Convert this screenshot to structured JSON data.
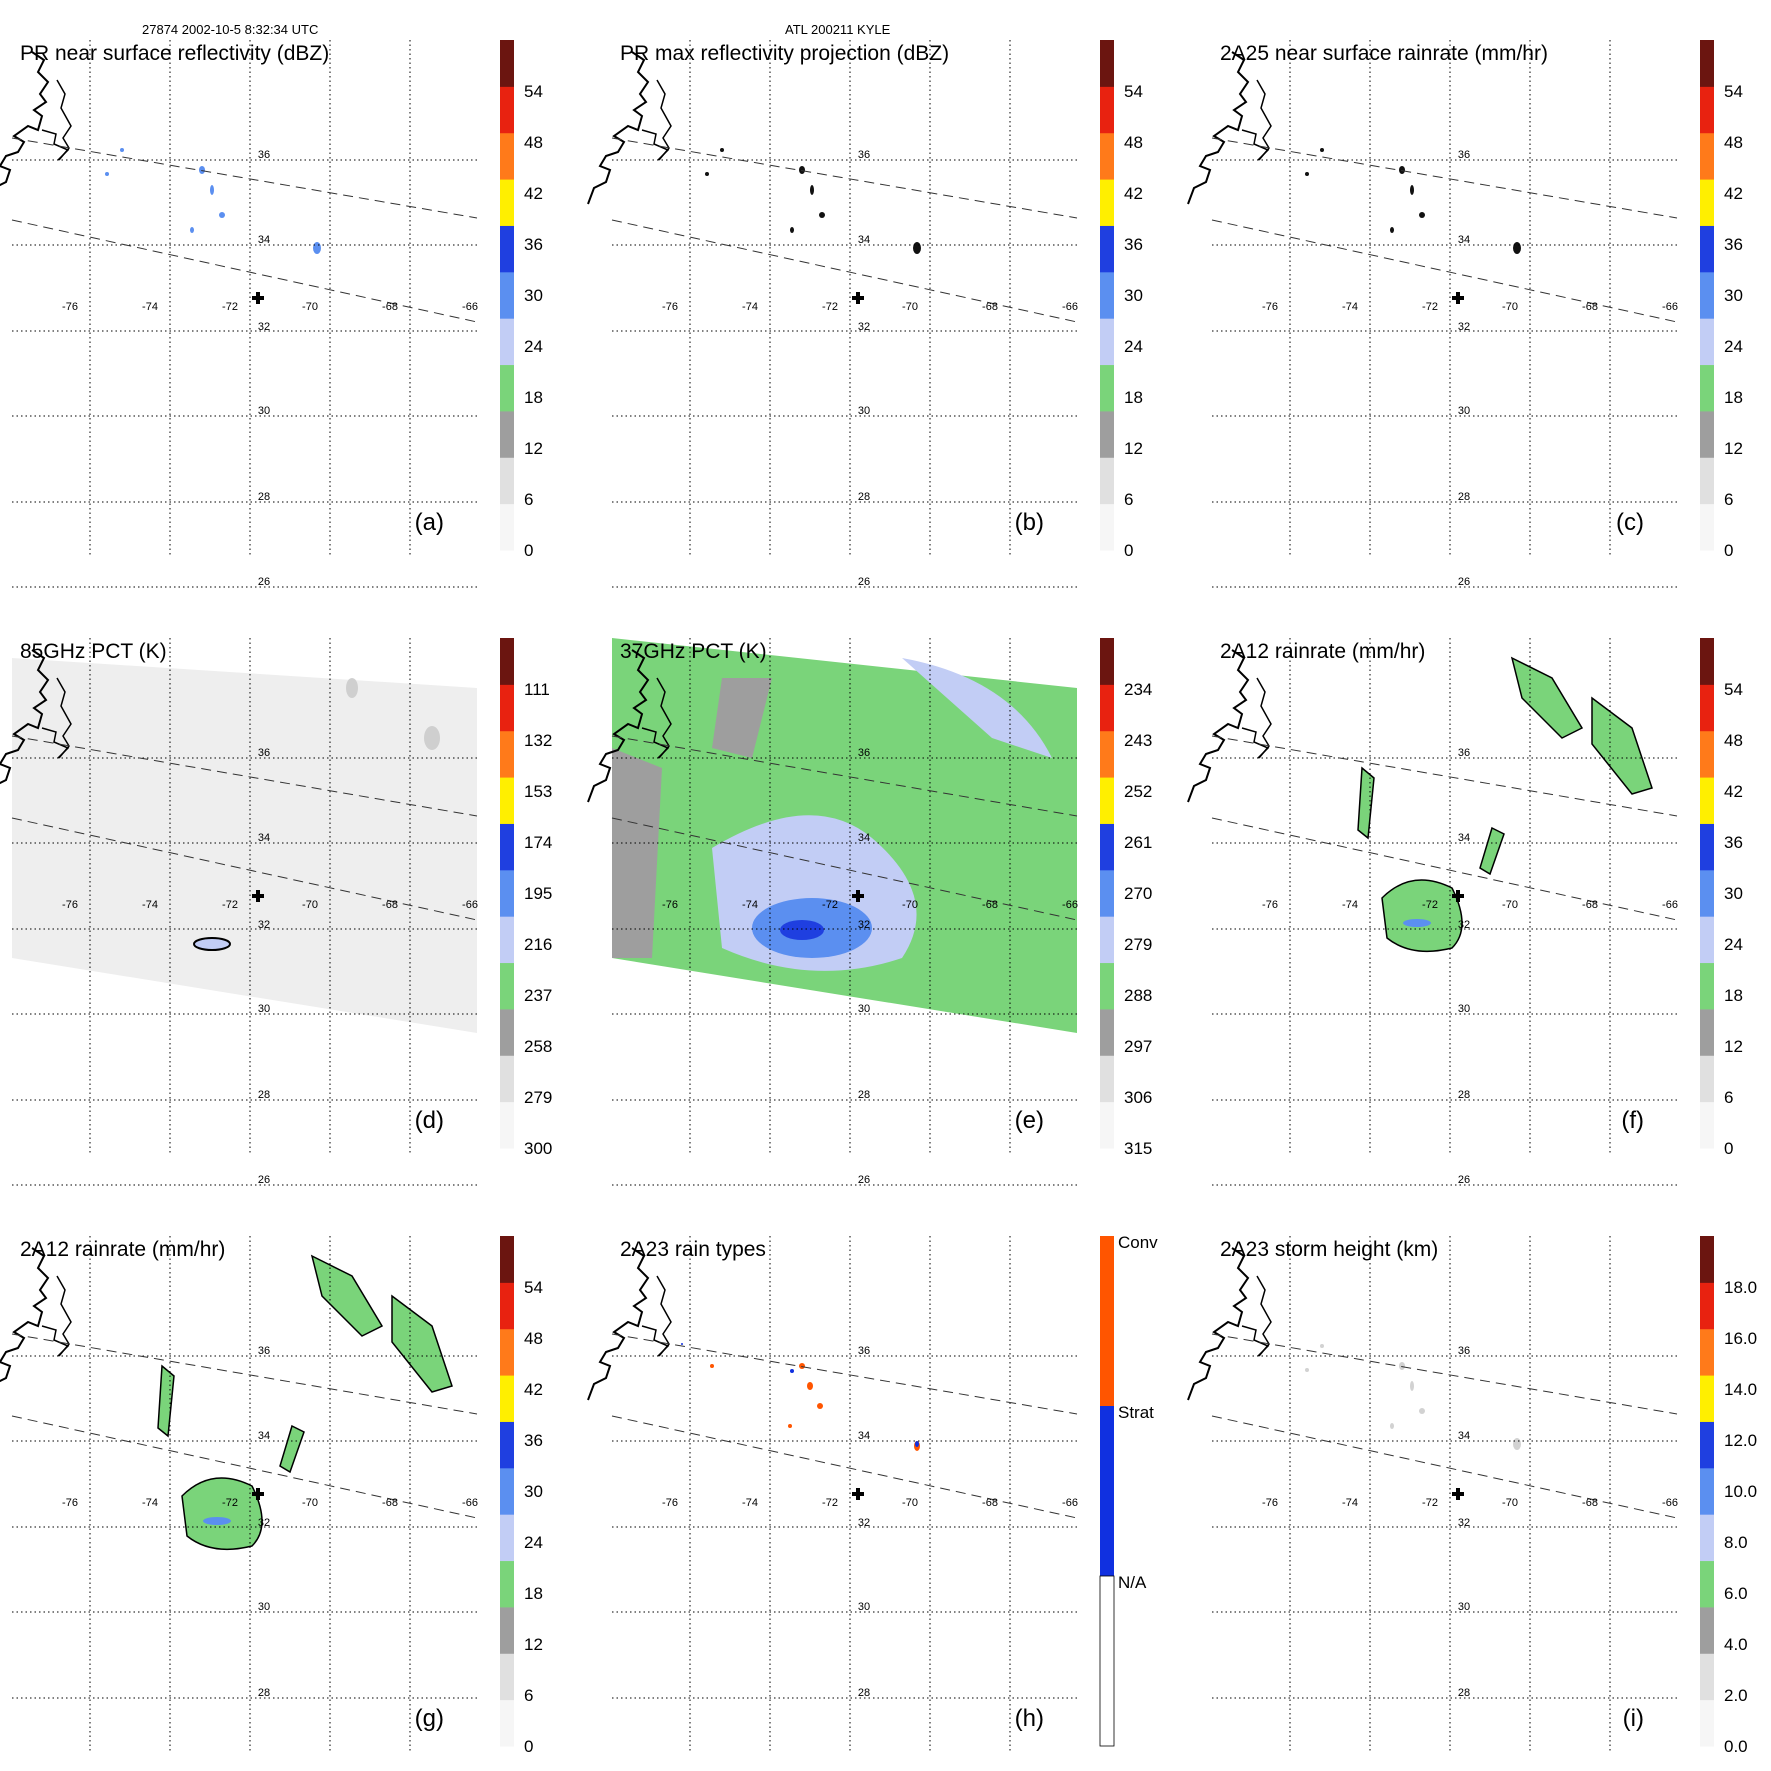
{
  "header": {
    "left": "27874 2002-10-5 8:32:34 UTC",
    "center": "ATL 200211 KYLE"
  },
  "lon_labels": [
    "-76",
    "-74",
    "-72",
    "-70",
    "-68",
    "-66"
  ],
  "lat_labels": [
    "36",
    "34",
    "32",
    "30",
    "28",
    "26"
  ],
  "colors": {
    "gray": "#9e9e9e",
    "lightgray": "#d2d2d2",
    "green": "#7ad47a",
    "lightblue": "#c2cdf5",
    "blue_mid": "#5b8ff0",
    "blue": "#1f3fe0",
    "yellow": "#ffef00",
    "orange": "#ff7a1a",
    "red": "#e82210",
    "darkred": "#6b1510",
    "conv": "#ff5500",
    "strat": "#1030e0"
  },
  "panels": [
    {
      "id": "a",
      "title": "PR near surface reflectivity (dBZ)",
      "letter": "(a)",
      "colorbar": {
        "labels": [
          "54",
          "48",
          "42",
          "36",
          "30",
          "24",
          "18",
          "12",
          "6",
          "0"
        ]
      }
    },
    {
      "id": "b",
      "title": "PR max reflectivity projection (dBZ)",
      "letter": "(b)",
      "colorbar": {
        "labels": [
          "54",
          "48",
          "42",
          "36",
          "30",
          "24",
          "18",
          "12",
          "6",
          "0"
        ]
      }
    },
    {
      "id": "c",
      "title": "2A25 near surface rainrate (mm/hr)",
      "letter": "(c)",
      "colorbar": {
        "labels": [
          "54",
          "48",
          "42",
          "36",
          "30",
          "24",
          "18",
          "12",
          "6",
          "0"
        ]
      }
    },
    {
      "id": "d",
      "title": "85GHz PCT (K)",
      "letter": "(d)",
      "colorbar": {
        "labels": [
          "111",
          "132",
          "153",
          "174",
          "195",
          "216",
          "237",
          "258",
          "279",
          "300"
        ]
      }
    },
    {
      "id": "e",
      "title": "37GHz PCT (K)",
      "letter": "(e)",
      "colorbar": {
        "labels": [
          "234",
          "243",
          "252",
          "261",
          "270",
          "279",
          "288",
          "297",
          "306",
          "315"
        ]
      }
    },
    {
      "id": "f",
      "title": "2A12 rainrate (mm/hr)",
      "letter": "(f)",
      "colorbar": {
        "labels": [
          "54",
          "48",
          "42",
          "36",
          "30",
          "24",
          "18",
          "12",
          "6",
          "0"
        ]
      }
    },
    {
      "id": "g",
      "title": "2A12 rainrate (mm/hr)",
      "letter": "(g)",
      "colorbar": {
        "labels": [
          "54",
          "48",
          "42",
          "36",
          "30",
          "24",
          "18",
          "12",
          "6",
          "0"
        ]
      }
    },
    {
      "id": "h",
      "title": "2A23 rain types",
      "letter": "(h)",
      "colorbar": {
        "labels": [
          "Conv",
          "Strat",
          "N/A"
        ]
      }
    },
    {
      "id": "i",
      "title": "2A23 storm height (km)",
      "letter": "(i)",
      "colorbar": {
        "labels": [
          "18.0",
          "16.0",
          "14.0",
          "12.0",
          "10.0",
          "8.0",
          "6.0",
          "4.0",
          "2.0",
          "0.0"
        ]
      }
    }
  ]
}
